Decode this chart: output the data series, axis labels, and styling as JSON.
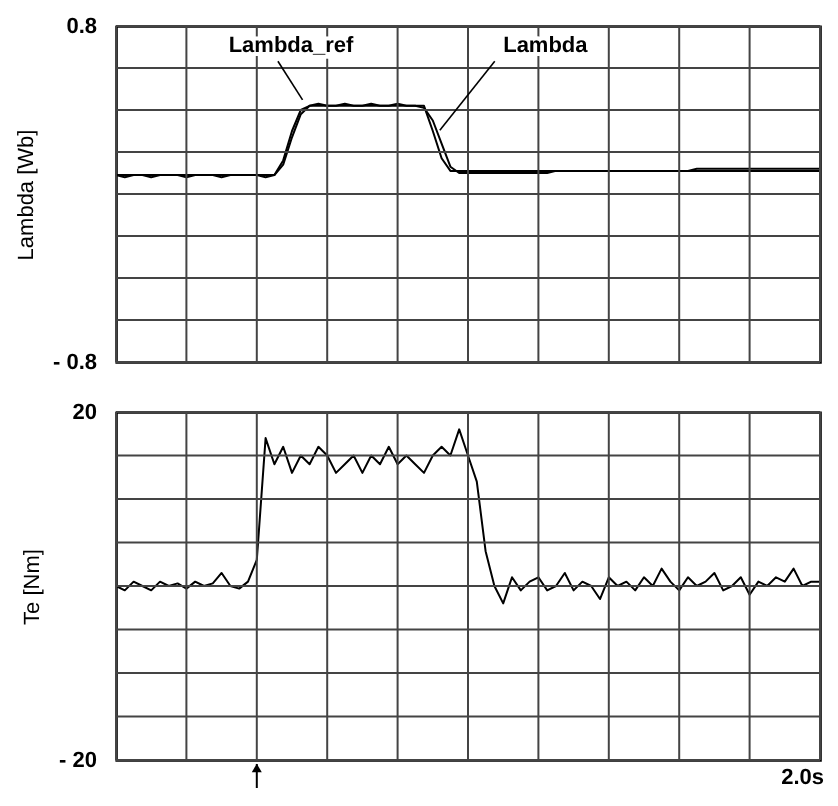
{
  "chart_data": [
    {
      "type": "line",
      "ylabel": "Lambda [Wb]",
      "ylim": [
        -0.8,
        0.8
      ],
      "categories": [
        null,
        null,
        null,
        null,
        null,
        null,
        null,
        null,
        null,
        null,
        null,
        null,
        null,
        null,
        null,
        null,
        null,
        null,
        null,
        null,
        null,
        null,
        null,
        null,
        null,
        null,
        null,
        null,
        null,
        null,
        null,
        null,
        null,
        null,
        null,
        null,
        null,
        null,
        null,
        null,
        null,
        null,
        null,
        null,
        null,
        null,
        null,
        null,
        null,
        null,
        null,
        null,
        null,
        null,
        null,
        null,
        null,
        null,
        null,
        null,
        null,
        null,
        null,
        null,
        null,
        null,
        null,
        null,
        null,
        null,
        null,
        null,
        null,
        null,
        null,
        null,
        null,
        null,
        null,
        null,
        null
      ],
      "yticks": [
        {
          "value": -0.8,
          "label": "- 0.8"
        },
        {
          "value": -0.6,
          "label": null
        },
        {
          "value": -0.4,
          "label": null
        },
        {
          "value": -0.2,
          "label": null
        },
        {
          "value": 0,
          "label": null
        },
        {
          "value": 0.2,
          "label": null
        },
        {
          "value": 0.4,
          "label": null
        },
        {
          "value": 0.6,
          "label": null
        },
        0.8
      ],
      "grid": true,
      "tick_labels": "y",
      "line_style": "solid",
      "series": [
        {
          "name": "Lambda_ref",
          "color": "#000000",
          "values": [
            0.09,
            0.09,
            0.09,
            0.09,
            0.09,
            0.09,
            0.09,
            0.09,
            0.09,
            0.09,
            0.09,
            0.09,
            0.09,
            0.09,
            0.09,
            0.09,
            0.09,
            0.09,
            0.09,
            0.16,
            0.3,
            0.4,
            0.42,
            0.42,
            0.42,
            0.42,
            0.42,
            0.42,
            0.42,
            0.42,
            0.42,
            0.42,
            0.42,
            0.42,
            0.42,
            0.42,
            0.3,
            0.17,
            0.11,
            0.11,
            0.11,
            0.11,
            0.11,
            0.11,
            0.11,
            0.11,
            0.11,
            0.11,
            0.11,
            0.11,
            0.11,
            0.11,
            0.11,
            0.11,
            0.11,
            0.11,
            0.11,
            0.11,
            0.11,
            0.11,
            0.11,
            0.11,
            0.11,
            0.11,
            0.11,
            0.11,
            0.11,
            0.11,
            0.11,
            0.11,
            0.11,
            0.11,
            0.11,
            0.11,
            0.11,
            0.11,
            0.11,
            0.11,
            0.11,
            0.11,
            0.11
          ]
        },
        {
          "name": "Lambda",
          "color": "#000000",
          "values": [
            0.09,
            0.08,
            0.09,
            0.09,
            0.08,
            0.09,
            0.09,
            0.09,
            0.08,
            0.09,
            0.09,
            0.09,
            0.08,
            0.09,
            0.09,
            0.09,
            0.09,
            0.08,
            0.09,
            0.14,
            0.27,
            0.38,
            0.42,
            0.43,
            0.42,
            0.42,
            0.43,
            0.42,
            0.42,
            0.43,
            0.42,
            0.42,
            0.43,
            0.42,
            0.42,
            0.41,
            0.35,
            0.24,
            0.13,
            0.1,
            0.1,
            0.1,
            0.1,
            0.1,
            0.1,
            0.1,
            0.1,
            0.1,
            0.1,
            0.1,
            0.11,
            0.11,
            0.11,
            0.11,
            0.11,
            0.11,
            0.11,
            0.11,
            0.11,
            0.11,
            0.11,
            0.11,
            0.11,
            0.11,
            0.11,
            0.11,
            0.12,
            0.12,
            0.12,
            0.12,
            0.12,
            0.12,
            0.12,
            0.12,
            0.12,
            0.12,
            0.12,
            0.12,
            0.12,
            0.12,
            0.12
          ]
        }
      ]
    },
    {
      "type": "line",
      "ylabel": "Te [Nm]",
      "ylim": [
        -20,
        20
      ],
      "annotations": [
        "2.0s"
      ],
      "categories": [
        null,
        null,
        null,
        null,
        null,
        null,
        null,
        null,
        null,
        null,
        null,
        null,
        null,
        null,
        null,
        null,
        null,
        null,
        null,
        null,
        null,
        null,
        null,
        null,
        null,
        null,
        null,
        null,
        null,
        null,
        null,
        null,
        null,
        null,
        null,
        null,
        null,
        null,
        null,
        null,
        null,
        null,
        null,
        null,
        null,
        null,
        null,
        null,
        null,
        null,
        null,
        null,
        null,
        null,
        null,
        null,
        null,
        null,
        null,
        null,
        null,
        null,
        null,
        null,
        null,
        null,
        null,
        null,
        null,
        null,
        null,
        null,
        null,
        null,
        null,
        null,
        null,
        null,
        null,
        null,
        null
      ],
      "yticks": [
        {
          "value": -20,
          "label": "- 20"
        },
        {
          "value": -15,
          "label": null
        },
        {
          "value": -10,
          "label": null
        },
        {
          "value": -5,
          "label": null
        },
        {
          "value": 0,
          "label": null
        },
        {
          "value": 5,
          "label": null
        },
        {
          "value": 10,
          "label": null
        },
        {
          "value": 15,
          "label": null
        },
        20
      ],
      "grid": true,
      "tick_labels": "y",
      "line_style": "solid",
      "series": [
        {
          "color": "#000000",
          "values": [
            0,
            -0.5,
            0.5,
            0,
            -0.5,
            0.5,
            0,
            0.3,
            -0.3,
            0.5,
            0,
            0.3,
            1.5,
            0,
            -0.3,
            0.5,
            3,
            17,
            14,
            16,
            13,
            15,
            14,
            16,
            15,
            13,
            14,
            15,
            13,
            15,
            14,
            16,
            14,
            15,
            14,
            13,
            15,
            16,
            15,
            18,
            15,
            12,
            4,
            0,
            -2,
            1,
            -0.5,
            0.5,
            1,
            -0.5,
            0,
            1.5,
            -0.5,
            0.5,
            0,
            -1.5,
            1,
            0,
            0.5,
            -0.5,
            1,
            0,
            2,
            0.5,
            -0.5,
            1,
            0,
            0.5,
            1.5,
            -0.5,
            0,
            1,
            -1,
            0.5,
            0,
            1,
            0.5,
            2,
            0,
            0.5,
            0.5
          ]
        }
      ]
    }
  ]
}
